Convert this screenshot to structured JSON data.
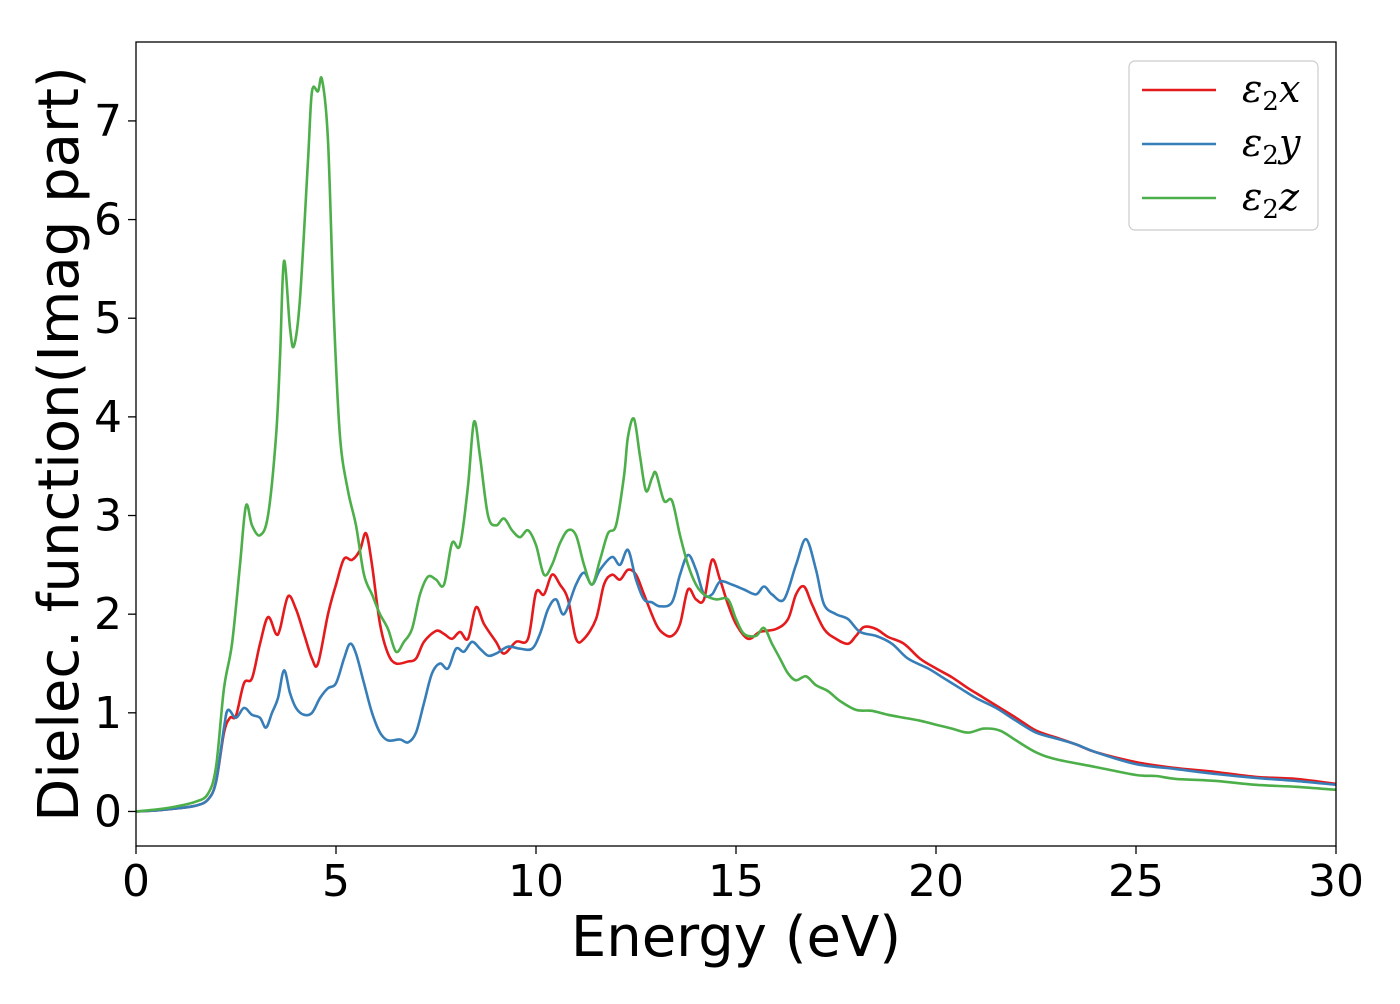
{
  "chart_data": {
    "type": "line",
    "title": "",
    "xlabel": "Energy (eV)",
    "ylabel": "Dielec. function(Imag part)",
    "xlim": [
      0,
      30
    ],
    "ylim": [
      -0.35,
      7.8
    ],
    "xticks": [
      "0",
      "5",
      "10",
      "15",
      "20",
      "25",
      "30"
    ],
    "yticks": [
      "0",
      "1",
      "2",
      "3",
      "4",
      "5",
      "6",
      "7"
    ],
    "grid": false,
    "legend_position": "top-right",
    "series": [
      {
        "name": "ε₂x",
        "legend_base": "ε",
        "legend_sub": "2",
        "legend_var": "x",
        "color": "#e41a1c",
        "points": [
          [
            0,
            0
          ],
          [
            0.5,
            0.01
          ],
          [
            1,
            0.03
          ],
          [
            1.5,
            0.06
          ],
          [
            1.8,
            0.12
          ],
          [
            2.0,
            0.3
          ],
          [
            2.2,
            0.8
          ],
          [
            2.35,
            0.95
          ],
          [
            2.5,
            0.97
          ],
          [
            2.7,
            1.3
          ],
          [
            2.9,
            1.35
          ],
          [
            3.1,
            1.7
          ],
          [
            3.3,
            1.97
          ],
          [
            3.5,
            1.8
          ],
          [
            3.6,
            1.85
          ],
          [
            3.8,
            2.18
          ],
          [
            4.0,
            2.05
          ],
          [
            4.2,
            1.8
          ],
          [
            4.4,
            1.55
          ],
          [
            4.55,
            1.5
          ],
          [
            4.8,
            2.0
          ],
          [
            5.0,
            2.3
          ],
          [
            5.2,
            2.56
          ],
          [
            5.4,
            2.55
          ],
          [
            5.6,
            2.65
          ],
          [
            5.75,
            2.82
          ],
          [
            5.9,
            2.5
          ],
          [
            6.1,
            1.9
          ],
          [
            6.3,
            1.6
          ],
          [
            6.5,
            1.5
          ],
          [
            6.8,
            1.52
          ],
          [
            7.0,
            1.55
          ],
          [
            7.2,
            1.72
          ],
          [
            7.5,
            1.83
          ],
          [
            7.7,
            1.8
          ],
          [
            7.9,
            1.75
          ],
          [
            8.1,
            1.82
          ],
          [
            8.3,
            1.75
          ],
          [
            8.5,
            2.07
          ],
          [
            8.7,
            1.9
          ],
          [
            9.0,
            1.72
          ],
          [
            9.2,
            1.6
          ],
          [
            9.5,
            1.72
          ],
          [
            9.8,
            1.75
          ],
          [
            10.0,
            2.22
          ],
          [
            10.2,
            2.2
          ],
          [
            10.4,
            2.4
          ],
          [
            10.6,
            2.3
          ],
          [
            10.8,
            2.15
          ],
          [
            11.0,
            1.75
          ],
          [
            11.2,
            1.75
          ],
          [
            11.5,
            1.95
          ],
          [
            11.7,
            2.3
          ],
          [
            11.9,
            2.4
          ],
          [
            12.1,
            2.35
          ],
          [
            12.3,
            2.45
          ],
          [
            12.5,
            2.4
          ],
          [
            12.7,
            2.2
          ],
          [
            13.0,
            1.9
          ],
          [
            13.2,
            1.8
          ],
          [
            13.4,
            1.78
          ],
          [
            13.6,
            1.9
          ],
          [
            13.8,
            2.25
          ],
          [
            14.0,
            2.15
          ],
          [
            14.2,
            2.15
          ],
          [
            14.4,
            2.55
          ],
          [
            14.6,
            2.35
          ],
          [
            14.8,
            2.1
          ],
          [
            15.0,
            1.9
          ],
          [
            15.3,
            1.75
          ],
          [
            15.6,
            1.82
          ],
          [
            16.0,
            1.85
          ],
          [
            16.3,
            1.95
          ],
          [
            16.5,
            2.2
          ],
          [
            16.7,
            2.28
          ],
          [
            16.9,
            2.1
          ],
          [
            17.2,
            1.85
          ],
          [
            17.5,
            1.75
          ],
          [
            17.8,
            1.7
          ],
          [
            18.0,
            1.78
          ],
          [
            18.2,
            1.87
          ],
          [
            18.5,
            1.85
          ],
          [
            18.8,
            1.77
          ],
          [
            19.2,
            1.7
          ],
          [
            19.6,
            1.55
          ],
          [
            20.0,
            1.45
          ],
          [
            20.4,
            1.36
          ],
          [
            20.8,
            1.25
          ],
          [
            21.2,
            1.15
          ],
          [
            21.6,
            1.05
          ],
          [
            22.0,
            0.95
          ],
          [
            22.5,
            0.82
          ],
          [
            23.0,
            0.75
          ],
          [
            23.5,
            0.68
          ],
          [
            24.0,
            0.6
          ],
          [
            25.0,
            0.5
          ],
          [
            26.0,
            0.44
          ],
          [
            27.0,
            0.4
          ],
          [
            28.0,
            0.35
          ],
          [
            29.0,
            0.33
          ],
          [
            30.0,
            0.28
          ]
        ]
      },
      {
        "name": "ε₂y",
        "legend_base": "ε",
        "legend_sub": "2",
        "legend_var": "y",
        "color": "#377eb8",
        "points": [
          [
            0,
            0
          ],
          [
            0.5,
            0.01
          ],
          [
            1,
            0.03
          ],
          [
            1.5,
            0.06
          ],
          [
            1.8,
            0.12
          ],
          [
            2.0,
            0.3
          ],
          [
            2.2,
            0.85
          ],
          [
            2.3,
            1.03
          ],
          [
            2.5,
            0.95
          ],
          [
            2.7,
            1.05
          ],
          [
            2.9,
            0.98
          ],
          [
            3.1,
            0.95
          ],
          [
            3.25,
            0.85
          ],
          [
            3.4,
            1.0
          ],
          [
            3.55,
            1.15
          ],
          [
            3.7,
            1.43
          ],
          [
            3.85,
            1.2
          ],
          [
            4.0,
            1.05
          ],
          [
            4.2,
            0.98
          ],
          [
            4.4,
            1.0
          ],
          [
            4.6,
            1.15
          ],
          [
            4.8,
            1.25
          ],
          [
            5.0,
            1.3
          ],
          [
            5.2,
            1.55
          ],
          [
            5.35,
            1.7
          ],
          [
            5.5,
            1.6
          ],
          [
            5.7,
            1.3
          ],
          [
            5.9,
            1.0
          ],
          [
            6.1,
            0.8
          ],
          [
            6.3,
            0.72
          ],
          [
            6.6,
            0.73
          ],
          [
            6.8,
            0.7
          ],
          [
            7.0,
            0.8
          ],
          [
            7.2,
            1.1
          ],
          [
            7.4,
            1.4
          ],
          [
            7.6,
            1.5
          ],
          [
            7.8,
            1.45
          ],
          [
            8.0,
            1.65
          ],
          [
            8.2,
            1.62
          ],
          [
            8.4,
            1.72
          ],
          [
            8.6,
            1.65
          ],
          [
            8.8,
            1.58
          ],
          [
            9.0,
            1.6
          ],
          [
            9.3,
            1.67
          ],
          [
            9.6,
            1.65
          ],
          [
            9.9,
            1.65
          ],
          [
            10.1,
            1.8
          ],
          [
            10.3,
            2.05
          ],
          [
            10.5,
            2.15
          ],
          [
            10.7,
            2.0
          ],
          [
            11.0,
            2.3
          ],
          [
            11.2,
            2.42
          ],
          [
            11.4,
            2.3
          ],
          [
            11.6,
            2.45
          ],
          [
            11.9,
            2.58
          ],
          [
            12.1,
            2.5
          ],
          [
            12.3,
            2.65
          ],
          [
            12.5,
            2.35
          ],
          [
            12.7,
            2.15
          ],
          [
            12.9,
            2.12
          ],
          [
            13.1,
            2.08
          ],
          [
            13.4,
            2.12
          ],
          [
            13.6,
            2.4
          ],
          [
            13.8,
            2.6
          ],
          [
            14.0,
            2.45
          ],
          [
            14.2,
            2.2
          ],
          [
            14.4,
            2.2
          ],
          [
            14.6,
            2.33
          ],
          [
            14.9,
            2.3
          ],
          [
            15.2,
            2.25
          ],
          [
            15.5,
            2.2
          ],
          [
            15.7,
            2.28
          ],
          [
            15.9,
            2.2
          ],
          [
            16.2,
            2.15
          ],
          [
            16.5,
            2.5
          ],
          [
            16.75,
            2.76
          ],
          [
            17.0,
            2.45
          ],
          [
            17.2,
            2.1
          ],
          [
            17.5,
            2.0
          ],
          [
            17.8,
            1.95
          ],
          [
            18.1,
            1.82
          ],
          [
            18.5,
            1.78
          ],
          [
            18.9,
            1.7
          ],
          [
            19.3,
            1.55
          ],
          [
            19.8,
            1.45
          ],
          [
            20.2,
            1.35
          ],
          [
            20.6,
            1.25
          ],
          [
            21.0,
            1.15
          ],
          [
            21.5,
            1.05
          ],
          [
            22.0,
            0.92
          ],
          [
            22.5,
            0.8
          ],
          [
            23.0,
            0.74
          ],
          [
            23.5,
            0.68
          ],
          [
            24.0,
            0.6
          ],
          [
            25.0,
            0.48
          ],
          [
            26.0,
            0.43
          ],
          [
            27.0,
            0.38
          ],
          [
            28.0,
            0.34
          ],
          [
            29.0,
            0.31
          ],
          [
            30.0,
            0.27
          ]
        ]
      },
      {
        "name": "ε₂z",
        "legend_base": "ε",
        "legend_sub": "2",
        "legend_var": "z",
        "color": "#4daf4a",
        "points": [
          [
            0,
            0
          ],
          [
            0.5,
            0.02
          ],
          [
            1,
            0.05
          ],
          [
            1.5,
            0.1
          ],
          [
            1.8,
            0.18
          ],
          [
            2.0,
            0.45
          ],
          [
            2.2,
            1.25
          ],
          [
            2.4,
            1.7
          ],
          [
            2.6,
            2.5
          ],
          [
            2.75,
            3.1
          ],
          [
            2.9,
            2.9
          ],
          [
            3.1,
            2.8
          ],
          [
            3.3,
            3.0
          ],
          [
            3.5,
            3.8
          ],
          [
            3.6,
            4.6
          ],
          [
            3.7,
            5.58
          ],
          [
            3.85,
            4.9
          ],
          [
            3.95,
            4.72
          ],
          [
            4.1,
            5.2
          ],
          [
            4.3,
            6.6
          ],
          [
            4.4,
            7.3
          ],
          [
            4.55,
            7.3
          ],
          [
            4.65,
            7.42
          ],
          [
            4.8,
            6.8
          ],
          [
            4.95,
            5.0
          ],
          [
            5.1,
            3.8
          ],
          [
            5.3,
            3.25
          ],
          [
            5.5,
            2.9
          ],
          [
            5.7,
            2.4
          ],
          [
            5.9,
            2.2
          ],
          [
            6.1,
            2.0
          ],
          [
            6.3,
            1.85
          ],
          [
            6.5,
            1.62
          ],
          [
            6.7,
            1.72
          ],
          [
            6.9,
            1.85
          ],
          [
            7.1,
            2.2
          ],
          [
            7.3,
            2.38
          ],
          [
            7.5,
            2.35
          ],
          [
            7.7,
            2.3
          ],
          [
            7.9,
            2.72
          ],
          [
            8.1,
            2.7
          ],
          [
            8.3,
            3.3
          ],
          [
            8.45,
            3.95
          ],
          [
            8.6,
            3.6
          ],
          [
            8.8,
            3.0
          ],
          [
            9.0,
            2.9
          ],
          [
            9.2,
            2.97
          ],
          [
            9.4,
            2.85
          ],
          [
            9.6,
            2.78
          ],
          [
            9.8,
            2.85
          ],
          [
            10.0,
            2.7
          ],
          [
            10.2,
            2.4
          ],
          [
            10.4,
            2.5
          ],
          [
            10.6,
            2.72
          ],
          [
            10.8,
            2.85
          ],
          [
            11.0,
            2.8
          ],
          [
            11.2,
            2.5
          ],
          [
            11.4,
            2.3
          ],
          [
            11.6,
            2.55
          ],
          [
            11.8,
            2.82
          ],
          [
            12.0,
            2.9
          ],
          [
            12.2,
            3.4
          ],
          [
            12.3,
            3.8
          ],
          [
            12.45,
            3.98
          ],
          [
            12.6,
            3.6
          ],
          [
            12.75,
            3.25
          ],
          [
            12.9,
            3.38
          ],
          [
            13.0,
            3.43
          ],
          [
            13.2,
            3.15
          ],
          [
            13.4,
            3.15
          ],
          [
            13.6,
            2.8
          ],
          [
            13.8,
            2.5
          ],
          [
            14.0,
            2.3
          ],
          [
            14.2,
            2.2
          ],
          [
            14.5,
            2.15
          ],
          [
            14.8,
            2.15
          ],
          [
            15.0,
            1.95
          ],
          [
            15.2,
            1.8
          ],
          [
            15.5,
            1.78
          ],
          [
            15.7,
            1.86
          ],
          [
            15.9,
            1.7
          ],
          [
            16.1,
            1.55
          ],
          [
            16.3,
            1.4
          ],
          [
            16.5,
            1.33
          ],
          [
            16.75,
            1.37
          ],
          [
            17.0,
            1.28
          ],
          [
            17.3,
            1.22
          ],
          [
            17.6,
            1.12
          ],
          [
            18.0,
            1.03
          ],
          [
            18.4,
            1.02
          ],
          [
            18.8,
            0.98
          ],
          [
            19.2,
            0.95
          ],
          [
            19.6,
            0.92
          ],
          [
            20.0,
            0.88
          ],
          [
            20.4,
            0.84
          ],
          [
            20.8,
            0.8
          ],
          [
            21.2,
            0.84
          ],
          [
            21.6,
            0.82
          ],
          [
            22.0,
            0.72
          ],
          [
            22.5,
            0.6
          ],
          [
            23.0,
            0.53
          ],
          [
            24.0,
            0.45
          ],
          [
            25.0,
            0.37
          ],
          [
            25.5,
            0.36
          ],
          [
            26.0,
            0.33
          ],
          [
            27.0,
            0.31
          ],
          [
            28.0,
            0.27
          ],
          [
            29.0,
            0.25
          ],
          [
            30.0,
            0.22
          ]
        ]
      }
    ]
  }
}
